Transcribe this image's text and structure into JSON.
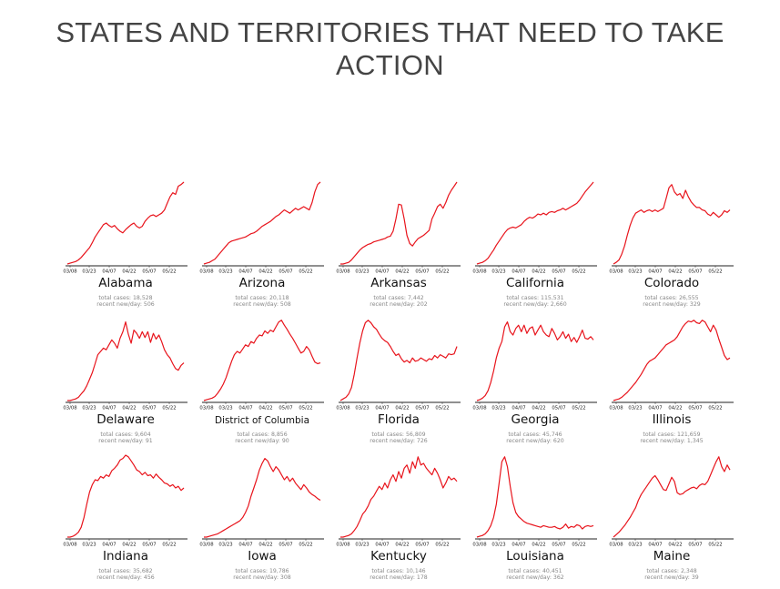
{
  "page": {
    "title": "STATES AND TERRITORIES THAT NEED TO TAKE ACTION"
  },
  "colors": {
    "line": "#e8141c",
    "axis": "#222222",
    "stat_text": "#888888",
    "title": "#444444"
  },
  "chart_data": [
    {
      "type": "line",
      "name": "Alabama",
      "cases_label": "total cases: 18,528",
      "recent_label": "recent new/day: 506",
      "x_ticks": [
        "03/08",
        "03/23",
        "04/07",
        "04/22",
        "05/07",
        "05/22"
      ],
      "y": [
        0,
        1,
        2,
        3,
        5,
        8,
        12,
        16,
        20,
        26,
        33,
        38,
        43,
        48,
        50,
        47,
        45,
        47,
        43,
        40,
        38,
        42,
        45,
        48,
        50,
        46,
        44,
        46,
        52,
        56,
        59,
        60,
        58,
        60,
        62,
        66,
        74,
        82,
        87,
        85,
        95,
        97,
        100
      ]
    },
    {
      "type": "line",
      "name": "Arizona",
      "cases_label": "total cases: 20,118",
      "recent_label": "recent new/day: 508",
      "x_ticks": [
        "03/08",
        "03/23",
        "04/07",
        "04/22",
        "05/07",
        "05/22"
      ],
      "y": [
        0,
        1,
        2,
        4,
        6,
        10,
        14,
        18,
        22,
        26,
        28,
        29,
        30,
        31,
        32,
        33,
        35,
        37,
        38,
        40,
        43,
        46,
        48,
        50,
        52,
        55,
        58,
        60,
        63,
        66,
        64,
        62,
        65,
        68,
        66,
        68,
        70,
        68,
        66,
        75,
        88,
        97,
        100
      ]
    },
    {
      "type": "line",
      "name": "Arkansas",
      "cases_label": "total cases: 7,442",
      "recent_label": "recent new/day: 202",
      "x_ticks": [
        "03/08",
        "03/23",
        "04/07",
        "04/22",
        "05/07",
        "05/22"
      ],
      "y": [
        0,
        0,
        1,
        2,
        5,
        9,
        13,
        17,
        20,
        22,
        24,
        25,
        27,
        28,
        29,
        30,
        31,
        33,
        34,
        40,
        55,
        73,
        72,
        55,
        35,
        25,
        22,
        27,
        31,
        33,
        35,
        38,
        41,
        55,
        62,
        70,
        73,
        68,
        75,
        84,
        90,
        95,
        100
      ]
    },
    {
      "type": "line",
      "name": "California",
      "cases_label": "total cases: 115,531",
      "recent_label": "recent new/day: 2,660",
      "x_ticks": [
        "03/08",
        "03/23",
        "04/07",
        "04/22",
        "05/07",
        "05/22"
      ],
      "y": [
        0,
        1,
        2,
        4,
        7,
        12,
        17,
        23,
        28,
        33,
        38,
        42,
        44,
        45,
        44,
        46,
        48,
        52,
        55,
        57,
        56,
        58,
        61,
        60,
        62,
        60,
        63,
        64,
        63,
        65,
        66,
        68,
        66,
        68,
        70,
        72,
        74,
        78,
        83,
        88,
        92,
        96,
        100
      ]
    },
    {
      "type": "line",
      "name": "Colorado",
      "cases_label": "total cases: 26,555",
      "recent_label": "recent new/day: 329",
      "x_ticks": [
        "03/08",
        "03/23",
        "04/07",
        "04/22",
        "05/07",
        "05/22"
      ],
      "y": [
        0,
        2,
        5,
        12,
        22,
        35,
        47,
        56,
        62,
        64,
        66,
        63,
        65,
        66,
        64,
        66,
        64,
        66,
        68,
        80,
        93,
        97,
        88,
        84,
        86,
        80,
        90,
        82,
        76,
        72,
        69,
        69,
        66,
        65,
        61,
        59,
        63,
        60,
        57,
        60,
        65,
        63,
        66
      ]
    },
    {
      "type": "line",
      "name": "Delaware",
      "cases_label": "total cases: 9,604",
      "recent_label": "recent new/day: 91",
      "x_ticks": [
        "03/08",
        "03/23",
        "04/07",
        "04/22",
        "05/07",
        "05/22"
      ],
      "y": [
        0,
        0,
        1,
        2,
        4,
        8,
        12,
        18,
        26,
        34,
        45,
        56,
        60,
        64,
        62,
        68,
        74,
        70,
        64,
        76,
        84,
        96,
        81,
        70,
        86,
        82,
        76,
        84,
        77,
        84,
        71,
        82,
        75,
        80,
        72,
        62,
        56,
        52,
        45,
        39,
        37,
        43,
        46
      ]
    },
    {
      "type": "line",
      "name": "District of Columbia",
      "cases_label": "total cases: 8,856",
      "recent_label": "recent new/day: 90",
      "x_ticks": [
        "03/08",
        "03/23",
        "04/07",
        "04/22",
        "05/07",
        "05/22"
      ],
      "y": [
        0,
        1,
        2,
        3,
        5,
        9,
        14,
        20,
        28,
        38,
        48,
        56,
        60,
        58,
        63,
        68,
        66,
        72,
        70,
        76,
        80,
        79,
        85,
        82,
        86,
        84,
        90,
        96,
        98,
        92,
        87,
        81,
        76,
        70,
        64,
        58,
        60,
        66,
        62,
        54,
        47,
        45,
        46
      ]
    },
    {
      "type": "line",
      "name": "Florida",
      "cases_label": "total cases: 56,809",
      "recent_label": "recent new/day: 726",
      "x_ticks": [
        "03/08",
        "03/23",
        "04/07",
        "04/22",
        "05/07",
        "05/22"
      ],
      "y": [
        0,
        2,
        4,
        8,
        16,
        32,
        52,
        70,
        85,
        95,
        98,
        95,
        90,
        87,
        81,
        76,
        73,
        71,
        66,
        60,
        55,
        57,
        51,
        47,
        49,
        46,
        52,
        48,
        49,
        52,
        50,
        48,
        51,
        50,
        55,
        52,
        56,
        54,
        52,
        57,
        56,
        57,
        66
      ]
    },
    {
      "type": "line",
      "name": "Georgia",
      "cases_label": "total cases: 45,746",
      "recent_label": "recent new/day: 620",
      "x_ticks": [
        "03/08",
        "03/23",
        "04/07",
        "04/22",
        "05/07",
        "05/22"
      ],
      "y": [
        0,
        1,
        3,
        6,
        12,
        22,
        36,
        52,
        64,
        72,
        90,
        96,
        84,
        80,
        88,
        92,
        84,
        92,
        82,
        88,
        90,
        80,
        86,
        92,
        84,
        80,
        78,
        88,
        82,
        74,
        78,
        84,
        76,
        81,
        72,
        77,
        71,
        78,
        86,
        76,
        75,
        78,
        74
      ]
    },
    {
      "type": "line",
      "name": "Illinois",
      "cases_label": "total cases: 121,659",
      "recent_label": "recent new/day: 1,345",
      "x_ticks": [
        "03/08",
        "03/23",
        "04/07",
        "04/22",
        "05/07",
        "05/22"
      ],
      "y": [
        0,
        1,
        2,
        4,
        7,
        10,
        14,
        18,
        22,
        27,
        32,
        38,
        44,
        48,
        50,
        52,
        56,
        60,
        64,
        68,
        70,
        72,
        74,
        78,
        84,
        90,
        94,
        97,
        96,
        98,
        95,
        94,
        98,
        96,
        90,
        84,
        92,
        86,
        75,
        65,
        55,
        50,
        52
      ]
    },
    {
      "type": "line",
      "name": "Indiana",
      "cases_label": "total cases: 35,682",
      "recent_label": "recent new/day: 456",
      "x_ticks": [
        "03/08",
        "03/23",
        "04/07",
        "04/22",
        "05/07",
        "05/22"
      ],
      "y": [
        0,
        0,
        1,
        3,
        6,
        12,
        24,
        40,
        55,
        64,
        70,
        69,
        74,
        72,
        76,
        74,
        81,
        84,
        88,
        94,
        96,
        100,
        98,
        93,
        88,
        82,
        80,
        76,
        79,
        75,
        76,
        72,
        77,
        73,
        70,
        66,
        65,
        62,
        64,
        60,
        62,
        57,
        60
      ]
    },
    {
      "type": "line",
      "name": "Iowa",
      "cases_label": "total cases: 19,786",
      "recent_label": "recent new/day: 308",
      "x_ticks": [
        "03/08",
        "03/23",
        "04/07",
        "04/22",
        "05/07",
        "05/22"
      ],
      "y": [
        0,
        0,
        1,
        2,
        3,
        4,
        6,
        8,
        10,
        12,
        14,
        16,
        18,
        20,
        24,
        30,
        38,
        50,
        60,
        70,
        82,
        90,
        96,
        93,
        86,
        80,
        86,
        82,
        76,
        70,
        74,
        68,
        72,
        66,
        62,
        58,
        64,
        60,
        55,
        52,
        50,
        47,
        45
      ]
    },
    {
      "type": "line",
      "name": "Kentucky",
      "cases_label": "total cases: 10,146",
      "recent_label": "recent new/day: 178",
      "x_ticks": [
        "03/08",
        "03/23",
        "04/07",
        "04/22",
        "05/07",
        "05/22"
      ],
      "y": [
        0,
        0,
        1,
        2,
        4,
        8,
        13,
        20,
        28,
        32,
        38,
        46,
        50,
        56,
        62,
        58,
        66,
        60,
        70,
        76,
        68,
        80,
        72,
        84,
        88,
        78,
        92,
        84,
        98,
        88,
        90,
        84,
        80,
        76,
        84,
        78,
        70,
        60,
        66,
        74,
        70,
        72,
        68
      ]
    },
    {
      "type": "line",
      "name": "Louisiana",
      "cases_label": "total cases: 40,451",
      "recent_label": "recent new/day: 362",
      "x_ticks": [
        "03/08",
        "03/23",
        "04/07",
        "04/22",
        "05/07",
        "05/22"
      ],
      "y": [
        0,
        1,
        2,
        4,
        8,
        14,
        24,
        40,
        66,
        92,
        98,
        86,
        62,
        42,
        30,
        25,
        22,
        19,
        17,
        16,
        15,
        14,
        13,
        12,
        14,
        13,
        12,
        12,
        13,
        11,
        10,
        12,
        16,
        11,
        13,
        12,
        15,
        14,
        10,
        13,
        14,
        13,
        14
      ]
    },
    {
      "type": "line",
      "name": "Maine",
      "cases_label": "total cases: 2,348",
      "recent_label": "recent new/day: 39",
      "x_ticks": [
        "03/08",
        "03/23",
        "04/07",
        "04/22",
        "05/07",
        "05/22"
      ],
      "y": [
        0,
        3,
        6,
        10,
        14,
        19,
        24,
        30,
        36,
        45,
        52,
        57,
        62,
        67,
        72,
        75,
        70,
        64,
        58,
        57,
        65,
        73,
        68,
        54,
        52,
        53,
        56,
        58,
        60,
        61,
        59,
        63,
        65,
        64,
        68,
        76,
        84,
        92,
        98,
        86,
        80,
        88,
        82
      ]
    }
  ]
}
